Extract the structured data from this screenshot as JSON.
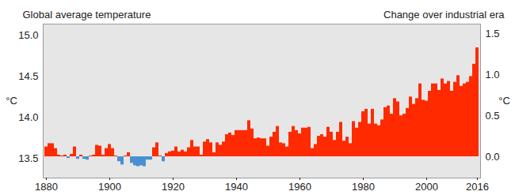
{
  "chart_data": {
    "type": "bar",
    "title": "Global average temperature",
    "subtitle": "Change over industrial era",
    "ylabel": "°C",
    "y2label": "°C",
    "x": [
      1880,
      1881,
      1882,
      1883,
      1884,
      1885,
      1886,
      1887,
      1888,
      1889,
      1890,
      1891,
      1892,
      1893,
      1894,
      1895,
      1896,
      1897,
      1898,
      1899,
      1900,
      1901,
      1902,
      1903,
      1904,
      1905,
      1906,
      1907,
      1908,
      1909,
      1910,
      1911,
      1912,
      1913,
      1914,
      1915,
      1916,
      1917,
      1918,
      1919,
      1920,
      1921,
      1922,
      1923,
      1924,
      1925,
      1926,
      1927,
      1928,
      1929,
      1930,
      1931,
      1932,
      1933,
      1934,
      1935,
      1936,
      1937,
      1938,
      1939,
      1940,
      1941,
      1942,
      1943,
      1944,
      1945,
      1946,
      1947,
      1948,
      1949,
      1950,
      1951,
      1952,
      1953,
      1954,
      1955,
      1956,
      1957,
      1958,
      1959,
      1960,
      1961,
      1962,
      1963,
      1964,
      1965,
      1966,
      1967,
      1968,
      1969,
      1970,
      1971,
      1972,
      1973,
      1974,
      1975,
      1976,
      1977,
      1978,
      1979,
      1980,
      1981,
      1982,
      1983,
      1984,
      1985,
      1986,
      1987,
      1988,
      1989,
      1990,
      1991,
      1992,
      1993,
      1994,
      1995,
      1996,
      1997,
      1998,
      1999,
      2000,
      2001,
      2002,
      2003,
      2004,
      2005,
      2006,
      2007,
      2008,
      2009,
      2010,
      2011,
      2012,
      2013,
      2014,
      2015,
      2016
    ],
    "series": [
      {
        "axis": "y2",
        "values": [
          0.12,
          0.16,
          0.16,
          0.1,
          0.02,
          0.01,
          0.02,
          -0.02,
          0.03,
          0.12,
          -0.03,
          0.02,
          -0.03,
          -0.04,
          0.01,
          0.02,
          0.14,
          0.13,
          0.02,
          0.1,
          0.15,
          0.1,
          0.01,
          -0.06,
          -0.1,
          0.01,
          0.05,
          -0.08,
          -0.11,
          -0.12,
          -0.11,
          -0.12,
          -0.04,
          -0.04,
          0.11,
          0.17,
          0.01,
          -0.06,
          0.04,
          0.06,
          0.07,
          0.12,
          0.06,
          0.08,
          0.06,
          0.11,
          0.2,
          0.12,
          0.12,
          0.02,
          0.18,
          0.21,
          0.17,
          0.05,
          0.17,
          0.14,
          0.18,
          0.27,
          0.29,
          0.26,
          0.32,
          0.32,
          0.32,
          0.32,
          0.44,
          0.34,
          0.22,
          0.23,
          0.22,
          0.22,
          0.13,
          0.24,
          0.3,
          0.37,
          0.17,
          0.16,
          0.12,
          0.3,
          0.37,
          0.32,
          0.28,
          0.35,
          0.35,
          0.36,
          0.1,
          0.15,
          0.25,
          0.27,
          0.24,
          0.36,
          0.3,
          0.2,
          0.3,
          0.42,
          0.19,
          0.24,
          0.16,
          0.43,
          0.35,
          0.42,
          0.55,
          0.58,
          0.4,
          0.58,
          0.4,
          0.38,
          0.45,
          0.6,
          0.62,
          0.52,
          0.71,
          0.67,
          0.5,
          0.52,
          0.59,
          0.73,
          0.64,
          0.71,
          0.89,
          0.69,
          0.68,
          0.8,
          0.89,
          0.89,
          0.81,
          0.95,
          0.89,
          0.92,
          0.8,
          0.91,
          0.99,
          0.86,
          0.89,
          0.91,
          0.98,
          1.13,
          1.33
        ],
        "colors": [
          "#ff2a00",
          "#ff2a00",
          "#ff2a00",
          "#ff2a00",
          "#ff2a00",
          "#ff2a00",
          "#ff2a00",
          "#4a90d0",
          "#ff2a00",
          "#ff2a00",
          "#4a90d0",
          "#ff2a00",
          "#4a90d0",
          "#4a90d0",
          "#ff2a00",
          "#ff2a00",
          "#ff2a00",
          "#ff2a00",
          "#ff2a00",
          "#ff2a00",
          "#ff2a00",
          "#ff2a00",
          "#ff2a00",
          "#4a90d0",
          "#4a90d0",
          "#ff2a00",
          "#ff2a00",
          "#4a90d0",
          "#4a90d0",
          "#4a90d0",
          "#4a90d0",
          "#4a90d0",
          "#4a90d0",
          "#4a90d0",
          "#ff2a00",
          "#ff2a00",
          "#ff2a00",
          "#4a90d0",
          "#ff2a00",
          "#ff2a00",
          "#ff2a00",
          "#ff2a00",
          "#ff2a00",
          "#ff2a00",
          "#ff2a00",
          "#ff2a00",
          "#ff2a00",
          "#ff2a00",
          "#ff2a00",
          "#ff2a00",
          "#ff2a00",
          "#ff2a00",
          "#ff2a00",
          "#ff2a00",
          "#ff2a00",
          "#ff2a00",
          "#ff2a00",
          "#ff2a00",
          "#ff2a00",
          "#ff2a00",
          "#ff2a00",
          "#ff2a00",
          "#ff2a00",
          "#ff2a00",
          "#ff2a00",
          "#ff2a00",
          "#ff2a00",
          "#ff2a00",
          "#ff2a00",
          "#ff2a00",
          "#ff2a00",
          "#ff2a00",
          "#ff2a00",
          "#ff2a00",
          "#ff2a00",
          "#ff2a00",
          "#ff2a00",
          "#ff2a00",
          "#ff2a00",
          "#ff2a00",
          "#ff2a00",
          "#ff2a00",
          "#ff2a00",
          "#ff2a00",
          "#ff2a00",
          "#ff2a00",
          "#ff2a00",
          "#ff2a00",
          "#ff2a00",
          "#ff2a00",
          "#ff2a00",
          "#ff2a00",
          "#ff2a00",
          "#ff2a00",
          "#ff2a00",
          "#ff2a00",
          "#ff2a00",
          "#ff2a00",
          "#ff2a00",
          "#ff2a00",
          "#ff2a00",
          "#ff2a00",
          "#ff2a00",
          "#ff2a00",
          "#ff2a00",
          "#ff2a00",
          "#ff2a00",
          "#ff2a00",
          "#ff2a00",
          "#ff2a00",
          "#ff2a00",
          "#ff2a00",
          "#ff2a00",
          "#ff2a00",
          "#ff2a00",
          "#ff2a00",
          "#ff2a00",
          "#ff2a00",
          "#ff2a00",
          "#ff2a00",
          "#ff2a00",
          "#ff2a00",
          "#ff2a00",
          "#ff2a00",
          "#ff2a00",
          "#ff2a00",
          "#ff2a00",
          "#ff2a00",
          "#ff2a00",
          "#ff2a00",
          "#ff2a00",
          "#ff2a00",
          "#ff2a00",
          "#ff2a00",
          "#ff2a00",
          "#ff2a00",
          "#ff2a00"
        ]
      }
    ],
    "xticks": [
      1880,
      1900,
      1920,
      1940,
      1960,
      1980,
      2000,
      2016
    ],
    "ylim": [
      13.26,
      15.14
    ],
    "yticks": [
      13.5,
      {
        "value": 14,
        "label": "14.0"
      },
      14.5,
      {
        "value": 15,
        "label": "15.0"
      }
    ],
    "y2lim": [
      -0.26,
      1.62
    ],
    "y2ticks": [
      {
        "value": 0,
        "label": "0.0"
      },
      0.5,
      {
        "value": 1,
        "label": "1.0"
      },
      1.5
    ],
    "grid": false
  }
}
